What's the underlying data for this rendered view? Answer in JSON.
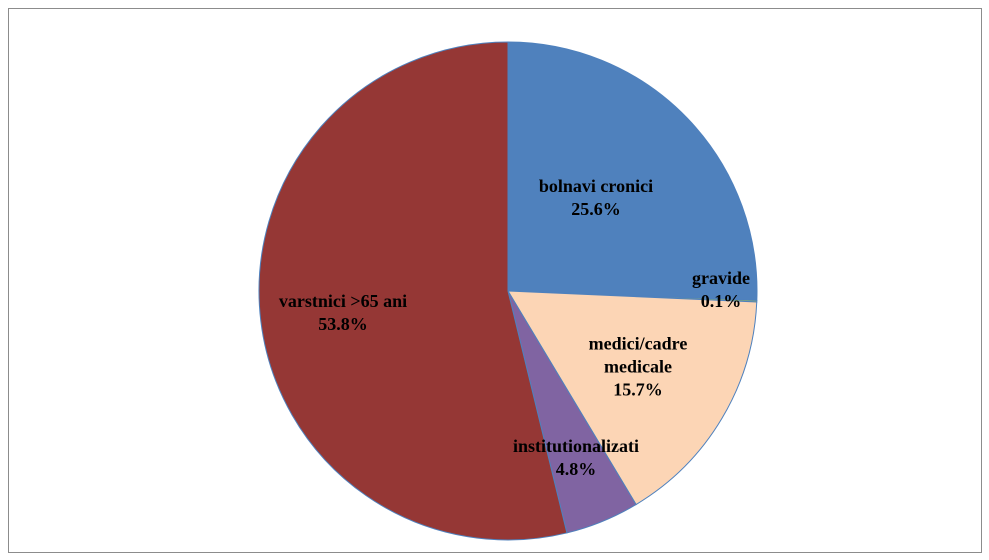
{
  "chart_data": {
    "type": "pie",
    "categories": [
      "bolnavi cronici",
      "gravide",
      "medici/cadre medicale",
      "institutionalizati",
      "varstnici >65 ani"
    ],
    "values": [
      25.6,
      0.1,
      15.7,
      4.8,
      53.8
    ],
    "value_labels": [
      "25.6%",
      "0.1%",
      "15.7%",
      "4.8%",
      "53.8%"
    ],
    "colors": [
      "#4f81bd",
      "#9bbb59",
      "#fcd5b5",
      "#8064a2",
      "#953735"
    ]
  }
}
